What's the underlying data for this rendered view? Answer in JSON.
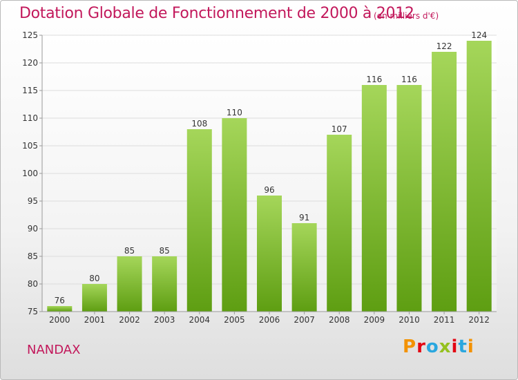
{
  "header": {
    "title": "Dotation Globale de Fonctionnement de 2000 à 2012",
    "unit": "(en milliers d'€)"
  },
  "footer": {
    "place": "NANDAX",
    "logo": "Proxiti",
    "logo_colors": [
      "#f39200",
      "#e30613",
      "#2aa7df",
      "#95c11f",
      "#e30613",
      "#2aa7df",
      "#f39200"
    ]
  },
  "chart_data": {
    "type": "bar",
    "categories": [
      "2000",
      "2001",
      "2002",
      "2003",
      "2004",
      "2005",
      "2006",
      "2007",
      "2008",
      "2009",
      "2010",
      "2011",
      "2012"
    ],
    "values": [
      76,
      80,
      85,
      85,
      108,
      110,
      96,
      91,
      107,
      116,
      116,
      122,
      124
    ],
    "ylim": [
      75,
      125
    ],
    "yticks": [
      75,
      80,
      85,
      90,
      95,
      100,
      105,
      110,
      115,
      120,
      125
    ],
    "grid": true,
    "colors": {
      "bar_top": "#a5d65a",
      "bar_bottom": "#5e9e12",
      "grid": "#dcdcdc",
      "axis": "#999999"
    }
  }
}
